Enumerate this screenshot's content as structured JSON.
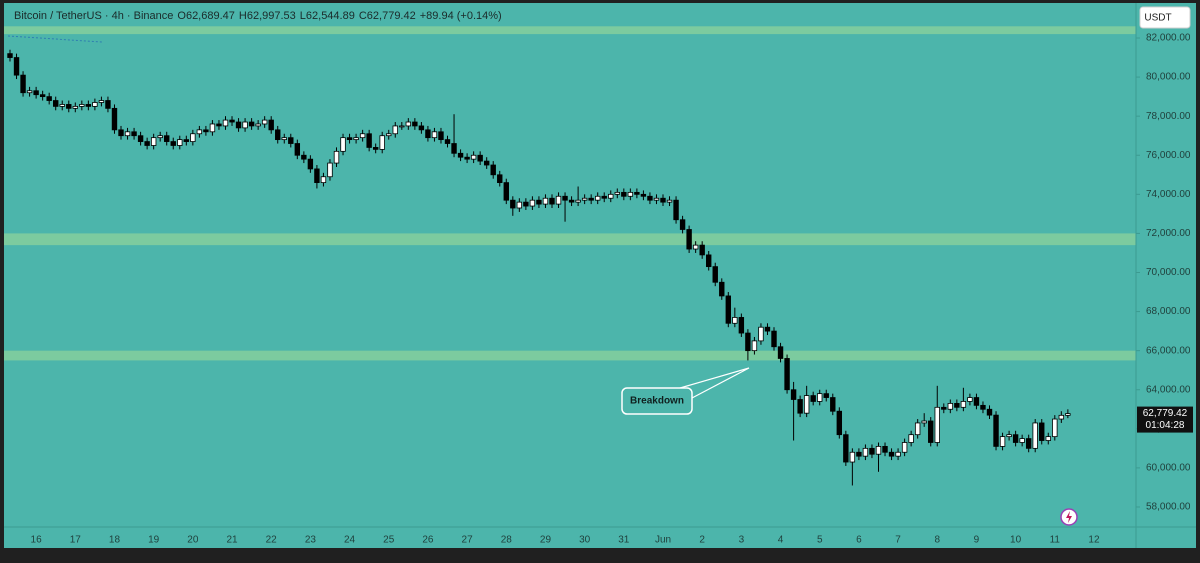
{
  "chart_data": {
    "type": "candlestick",
    "title": "Bitcoin / TetherUS · 4h · Binance",
    "ohlc_labels": [
      "O62,689.47",
      "H62,997.53",
      "L62,544.89",
      "C62,779.42"
    ],
    "change": "+89.94 (+0.14%)",
    "currency": "USDT",
    "last_price": {
      "value": 62779.42,
      "label": "62,779.42"
    },
    "countdown": "01:04:28",
    "up_color": "#ffffff",
    "down_color": "#000000",
    "background": "#4cb5ab",
    "zone_color": "#7ccb9f",
    "zones": [
      {
        "from": 82200,
        "to": 82600
      },
      {
        "from": 71400,
        "to": 72000
      },
      {
        "from": 65500,
        "to": 66000
      }
    ],
    "annotations": [
      {
        "text": "Breakdown"
      }
    ],
    "ylim": [
      56975,
      83945
    ],
    "yticks": [
      {
        "value": 58000,
        "label": "58,000.00"
      },
      {
        "value": 60000,
        "label": "60,000.00"
      },
      {
        "value": 62000,
        "label": "62,000.00"
      },
      {
        "value": 64000,
        "label": "64,000.00"
      },
      {
        "value": 66000,
        "label": "66,000.00"
      },
      {
        "value": 68000,
        "label": "68,000.00"
      },
      {
        "value": 70000,
        "label": "70,000.00"
      },
      {
        "value": 72000,
        "label": "72,000.00"
      },
      {
        "value": 74000,
        "label": "74,000.00"
      },
      {
        "value": 76000,
        "label": "76,000.00"
      },
      {
        "value": 78000,
        "label": "78,000.00"
      },
      {
        "value": 80000,
        "label": "80,000.00"
      },
      {
        "value": 82000,
        "label": "82,000.00"
      }
    ],
    "categories": [
      null,
      null,
      null,
      null,
      "16",
      null,
      null,
      null,
      null,
      null,
      "17",
      null,
      null,
      null,
      null,
      null,
      "18",
      null,
      null,
      null,
      null,
      null,
      "19",
      null,
      null,
      null,
      null,
      null,
      "20",
      null,
      null,
      null,
      null,
      null,
      "21",
      null,
      null,
      null,
      null,
      null,
      "22",
      null,
      null,
      null,
      null,
      null,
      "23",
      null,
      null,
      null,
      null,
      null,
      "24",
      null,
      null,
      null,
      null,
      null,
      "25",
      null,
      null,
      null,
      null,
      null,
      "26",
      null,
      null,
      null,
      null,
      null,
      "27",
      null,
      null,
      null,
      null,
      null,
      "28",
      null,
      null,
      null,
      null,
      null,
      "29",
      null,
      null,
      null,
      null,
      null,
      "30",
      null,
      null,
      null,
      null,
      null,
      "31",
      null,
      null,
      null,
      null,
      null,
      "Jun",
      null,
      null,
      null,
      null,
      null,
      "2",
      null,
      null,
      null,
      null,
      null,
      "3",
      null,
      null,
      null,
      null,
      null,
      "4",
      null,
      null,
      null,
      null,
      null,
      "5",
      null,
      null,
      null,
      null,
      null,
      "6",
      null,
      null,
      null,
      null,
      null,
      "7",
      null,
      null,
      null,
      null,
      null,
      "8",
      null,
      null,
      null,
      null,
      null,
      "9",
      null,
      null,
      null,
      null,
      null,
      "10",
      null,
      null,
      null,
      null,
      null,
      "11",
      null,
      null,
      null,
      null,
      null,
      "12"
    ],
    "open": [
      81200,
      81000,
      80100,
      79200,
      79300,
      79100,
      79000,
      78800,
      78500,
      78600,
      78400,
      78500,
      78600,
      78500,
      78700,
      78800,
      78400,
      77300,
      77000,
      77200,
      77000,
      76700,
      76500,
      76900,
      77000,
      76700,
      76500,
      76800,
      76700,
      77100,
      77300,
      77200,
      77600,
      77500,
      77800,
      77700,
      77400,
      77700,
      77500,
      77600,
      77800,
      77300,
      76800,
      76900,
      76600,
      76000,
      75800,
      75300,
      74600,
      74900,
      75600,
      76200,
      76900,
      76800,
      76900,
      77100,
      76400,
      76300,
      77000,
      77100,
      77500,
      77500,
      77700,
      77500,
      77300,
      76900,
      77200,
      76800,
      76600,
      76100,
      75900,
      75800,
      76000,
      75700,
      75500,
      75000,
      74600,
      73700,
      73300,
      73600,
      73400,
      73700,
      73500,
      73800,
      73500,
      73900,
      73700,
      73600,
      73700,
      73800,
      73700,
      73900,
      73800,
      74000,
      74100,
      73900,
      74100,
      74000,
      73900,
      73700,
      73800,
      73600,
      73700,
      72700,
      72200,
      71200,
      71400,
      70900,
      70300,
      69500,
      68800,
      67400,
      67700,
      66900,
      66000,
      66500,
      67200,
      67000,
      66200,
      65600,
      64000,
      63500,
      62800,
      63700,
      63400,
      63800,
      63600,
      62900,
      61700,
      60300,
      60800,
      60600,
      61000,
      60700,
      61100,
      60800,
      60600,
      60800,
      61300,
      61700,
      62300,
      62400,
      61300,
      63100,
      63000,
      63300,
      63100,
      63400,
      63600,
      63200,
      63000,
      62700,
      61100,
      61600,
      61700,
      61300,
      61500,
      61000,
      62300,
      61400,
      61600,
      62500,
      62689.47,
      null,
      null,
      null,
      null
    ],
    "high": [
      81400,
      81200,
      80300,
      79500,
      79500,
      79300,
      79200,
      79000,
      78800,
      78800,
      78700,
      78800,
      78800,
      78900,
      79000,
      79000,
      78600,
      77500,
      77400,
      77400,
      77200,
      76900,
      77100,
      77200,
      77200,
      76900,
      77000,
      77000,
      77300,
      77500,
      77500,
      77800,
      77800,
      78000,
      78000,
      77900,
      77900,
      77900,
      77800,
      78000,
      78000,
      77500,
      77100,
      77100,
      76800,
      76200,
      76000,
      75500,
      75100,
      75800,
      76400,
      77100,
      77100,
      77100,
      77300,
      77300,
      76600,
      77200,
      77300,
      77700,
      77700,
      77900,
      77900,
      77700,
      77500,
      77400,
      77400,
      77000,
      78100,
      76300,
      76100,
      76200,
      76200,
      75900,
      75700,
      75200,
      74800,
      73900,
      73800,
      73800,
      73900,
      73900,
      74000,
      74000,
      74100,
      74100,
      73900,
      74400,
      74000,
      74000,
      74100,
      74100,
      74200,
      74300,
      74300,
      74300,
      74300,
      74200,
      74100,
      74000,
      74000,
      73900,
      73900,
      72900,
      72400,
      71600,
      71600,
      71100,
      70500,
      69700,
      69000,
      68200,
      67900,
      67100,
      66700,
      67400,
      67400,
      67200,
      66400,
      65800,
      64400,
      63700,
      64200,
      63900,
      64000,
      64000,
      63800,
      63100,
      61900,
      61000,
      61000,
      61200,
      61200,
      61300,
      61300,
      61000,
      61000,
      61500,
      61900,
      62500,
      62800,
      62600,
      64200,
      63300,
      63500,
      63500,
      64100,
      63800,
      63800,
      63400,
      63200,
      62900,
      61800,
      61900,
      61900,
      61700,
      61700,
      62500,
      62500,
      61800,
      62700,
      62900,
      62997.53,
      null,
      null,
      null,
      null
    ],
    "low": [
      80800,
      79900,
      79000,
      79000,
      78900,
      78800,
      78600,
      78300,
      78300,
      78200,
      78200,
      78300,
      78300,
      78300,
      78500,
      78200,
      77100,
      76800,
      76800,
      76800,
      76500,
      76300,
      76300,
      76700,
      76500,
      76300,
      76300,
      76500,
      76500,
      76900,
      77000,
      77000,
      77300,
      77300,
      77500,
      77200,
      77200,
      77300,
      77300,
      77400,
      77100,
      76600,
      76600,
      76400,
      75800,
      75600,
      75100,
      74300,
      74400,
      74700,
      75400,
      76000,
      76600,
      76600,
      76700,
      76200,
      76100,
      76100,
      76800,
      76900,
      77300,
      77300,
      77300,
      77100,
      76700,
      76700,
      76600,
      76400,
      75900,
      75700,
      75600,
      75600,
      75500,
      75300,
      74800,
      74400,
      73500,
      72900,
      73100,
      73200,
      73200,
      73300,
      73300,
      73300,
      73300,
      72600,
      73400,
      73400,
      73500,
      73500,
      73500,
      73600,
      73600,
      73800,
      73700,
      73700,
      73800,
      73700,
      73500,
      73500,
      73400,
      73400,
      72500,
      72000,
      71000,
      71000,
      70700,
      70100,
      69300,
      68600,
      67200,
      67200,
      66700,
      65500,
      65800,
      66300,
      66800,
      66000,
      65400,
      63800,
      61400,
      62600,
      62600,
      63200,
      63200,
      63400,
      62700,
      61500,
      60100,
      59100,
      60400,
      60400,
      60500,
      59800,
      60600,
      60400,
      60400,
      60600,
      61100,
      61500,
      62100,
      61100,
      61100,
      62800,
      62800,
      62900,
      62900,
      63200,
      63000,
      62800,
      62500,
      60900,
      60900,
      61400,
      61100,
      61100,
      60800,
      60800,
      61200,
      61200,
      61400,
      62300,
      62544.89,
      null,
      null,
      null,
      null
    ],
    "close": [
      81000,
      80100,
      79200,
      79300,
      79100,
      79000,
      78800,
      78500,
      78600,
      78400,
      78500,
      78600,
      78500,
      78700,
      78800,
      78400,
      77300,
      77000,
      77200,
      77000,
      76700,
      76500,
      76900,
      77000,
      76700,
      76500,
      76800,
      76700,
      77100,
      77300,
      77200,
      77600,
      77500,
      77800,
      77700,
      77400,
      77700,
      77500,
      77600,
      77800,
      77300,
      76800,
      76900,
      76600,
      76000,
      75800,
      75300,
      74600,
      74900,
      75600,
      76200,
      76900,
      76800,
      76900,
      77100,
      76400,
      76300,
      77000,
      77100,
      77500,
      77500,
      77700,
      77500,
      77300,
      76900,
      77200,
      76800,
      76600,
      76100,
      75900,
      75800,
      76000,
      75700,
      75500,
      75000,
      74600,
      73700,
      73300,
      73600,
      73400,
      73700,
      73500,
      73800,
      73500,
      73900,
      73700,
      73600,
      73700,
      73800,
      73700,
      73900,
      73800,
      74000,
      74100,
      73900,
      74100,
      74000,
      73900,
      73700,
      73800,
      73600,
      73700,
      72700,
      72200,
      71200,
      71400,
      70900,
      70300,
      69500,
      68800,
      67400,
      67700,
      66900,
      66000,
      66500,
      67200,
      67000,
      66200,
      65600,
      64000,
      63500,
      62800,
      63700,
      63400,
      63800,
      63600,
      62900,
      61700,
      60300,
      60800,
      60600,
      61000,
      60700,
      61100,
      60800,
      60600,
      60800,
      61300,
      61700,
      62300,
      62400,
      61300,
      63100,
      63000,
      63300,
      63100,
      63400,
      63600,
      63200,
      63000,
      62700,
      61100,
      61600,
      61700,
      61300,
      61500,
      61000,
      62300,
      61400,
      61600,
      62500,
      62689.47,
      62779.42,
      null,
      null,
      null,
      null
    ]
  }
}
